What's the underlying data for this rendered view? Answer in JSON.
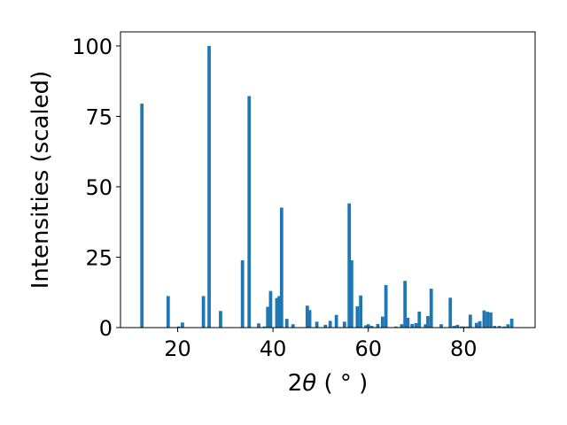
{
  "chart_data": {
    "type": "bar",
    "xlabel_main": "2",
    "xlabel_theta": "θ",
    "xlabel_unit": " ( ° )",
    "ylabel": "Intensities (scaled)",
    "xlim": [
      8,
      95
    ],
    "ylim": [
      0,
      105
    ],
    "xticks": [
      20,
      40,
      60,
      80
    ],
    "yticks": [
      0,
      25,
      50,
      75,
      100
    ],
    "bar_color": "#1f77b4",
    "bar_width_deg": 0.7,
    "grid": false,
    "x": [
      12.5,
      18.0,
      20.2,
      21.0,
      25.4,
      26.6,
      29.0,
      33.6,
      35.0,
      37.0,
      38.2,
      38.9,
      39.5,
      40.8,
      41.3,
      41.8,
      42.9,
      44.2,
      47.2,
      47.7,
      49.2,
      51.0,
      52.0,
      53.3,
      55.0,
      56.0,
      56.5,
      57.7,
      58.4,
      59.5,
      60.0,
      60.7,
      62.0,
      63.0,
      63.7,
      65.8,
      67.0,
      67.7,
      68.3,
      69.2,
      70.0,
      70.7,
      72.0,
      72.5,
      73.2,
      75.3,
      77.2,
      78.0,
      78.7,
      79.5,
      80.0,
      80.8,
      81.4,
      82.7,
      83.4,
      84.3,
      85.0,
      85.7,
      86.5,
      87.5,
      88.5,
      89.3,
      90.1
    ],
    "values": [
      79.5,
      11.2,
      0.4,
      1.8,
      11.2,
      100.0,
      5.9,
      23.9,
      82.2,
      1.5,
      0.4,
      7.4,
      13.0,
      10.5,
      11.2,
      42.6,
      3.1,
      1.2,
      7.8,
      6.2,
      2.1,
      1.0,
      2.4,
      4.5,
      2.1,
      44.1,
      23.9,
      7.6,
      11.4,
      0.8,
      1.2,
      0.6,
      1.3,
      3.9,
      15.1,
      0.4,
      1.2,
      16.6,
      3.5,
      1.3,
      1.6,
      5.7,
      1.2,
      4.1,
      13.8,
      1.2,
      10.6,
      0.6,
      1.0,
      0.4,
      0.4,
      0.4,
      4.6,
      1.7,
      2.3,
      6.1,
      5.6,
      5.4,
      0.6,
      0.6,
      0.4,
      1.2,
      3.2
    ]
  }
}
